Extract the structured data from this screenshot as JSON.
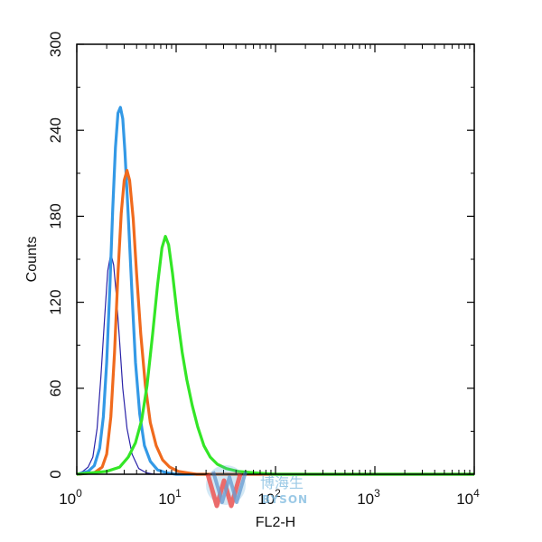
{
  "chart_data": {
    "type": "line",
    "title": "",
    "xlabel": "FL2-H",
    "ylabel": "Counts",
    "xscale": "log",
    "xlim": [
      1,
      10000
    ],
    "ylim": [
      0,
      300
    ],
    "grid": false,
    "legend": "none",
    "x_ticks": [
      {
        "value": 1,
        "base": "10",
        "exp": "0"
      },
      {
        "value": 10,
        "base": "10",
        "exp": "1"
      },
      {
        "value": 100,
        "base": "10",
        "exp": "2"
      },
      {
        "value": 1000,
        "base": "10",
        "exp": "3"
      },
      {
        "value": 10000,
        "base": "10",
        "exp": "4"
      }
    ],
    "y_ticks": [
      {
        "value": 0,
        "label": "0"
      },
      {
        "value": 60,
        "label": "60"
      },
      {
        "value": 120,
        "label": "120"
      },
      {
        "value": 180,
        "label": "180"
      },
      {
        "value": 240,
        "label": "240"
      },
      {
        "value": 300,
        "label": "300"
      }
    ],
    "series": [
      {
        "color": "#2a23a8",
        "width": 1.2,
        "points": [
          [
            1.0,
            0
          ],
          [
            1.15,
            2
          ],
          [
            1.3,
            5
          ],
          [
            1.45,
            12
          ],
          [
            1.6,
            32
          ],
          [
            1.75,
            68
          ],
          [
            1.9,
            108
          ],
          [
            2.05,
            142
          ],
          [
            2.2,
            154
          ],
          [
            2.35,
            146
          ],
          [
            2.5,
            125
          ],
          [
            2.7,
            92
          ],
          [
            2.9,
            60
          ],
          [
            3.2,
            32
          ],
          [
            3.6,
            14
          ],
          [
            4.2,
            4
          ],
          [
            5.0,
            1
          ],
          [
            6.0,
            0
          ],
          [
            8.0,
            0
          ],
          [
            10000,
            0
          ]
        ]
      },
      {
        "color": "#3399e6",
        "width": 3.2,
        "points": [
          [
            1.0,
            0
          ],
          [
            1.3,
            2
          ],
          [
            1.5,
            6
          ],
          [
            1.7,
            18
          ],
          [
            1.85,
            40
          ],
          [
            2.0,
            78
          ],
          [
            2.15,
            130
          ],
          [
            2.3,
            185
          ],
          [
            2.45,
            228
          ],
          [
            2.6,
            252
          ],
          [
            2.75,
            256
          ],
          [
            2.9,
            248
          ],
          [
            3.05,
            225
          ],
          [
            3.3,
            180
          ],
          [
            3.6,
            125
          ],
          [
            3.9,
            78
          ],
          [
            4.3,
            42
          ],
          [
            4.8,
            20
          ],
          [
            5.5,
            9
          ],
          [
            6.5,
            3
          ],
          [
            8.0,
            1
          ],
          [
            10.0,
            0
          ],
          [
            10000,
            0
          ]
        ]
      },
      {
        "color": "#f06a1d",
        "width": 3.2,
        "points": [
          [
            1.0,
            0
          ],
          [
            1.5,
            1
          ],
          [
            1.8,
            5
          ],
          [
            2.0,
            14
          ],
          [
            2.2,
            40
          ],
          [
            2.4,
            85
          ],
          [
            2.6,
            140
          ],
          [
            2.8,
            182
          ],
          [
            3.0,
            205
          ],
          [
            3.2,
            212
          ],
          [
            3.4,
            205
          ],
          [
            3.7,
            178
          ],
          [
            4.0,
            140
          ],
          [
            4.4,
            98
          ],
          [
            4.9,
            62
          ],
          [
            5.5,
            36
          ],
          [
            6.3,
            20
          ],
          [
            7.3,
            10
          ],
          [
            8.6,
            5
          ],
          [
            10.5,
            2
          ],
          [
            13,
            1
          ],
          [
            16,
            0
          ],
          [
            10000,
            0
          ]
        ]
      },
      {
        "color": "#33e626",
        "width": 3.2,
        "points": [
          [
            1.0,
            0
          ],
          [
            2.0,
            2
          ],
          [
            2.7,
            5
          ],
          [
            3.3,
            12
          ],
          [
            3.9,
            22
          ],
          [
            4.5,
            38
          ],
          [
            5.1,
            62
          ],
          [
            5.8,
            98
          ],
          [
            6.5,
            132
          ],
          [
            7.2,
            158
          ],
          [
            7.8,
            166
          ],
          [
            8.4,
            160
          ],
          [
            9.2,
            140
          ],
          [
            10.3,
            110
          ],
          [
            11.5,
            85
          ],
          [
            12.8,
            66
          ],
          [
            14.5,
            48
          ],
          [
            16.5,
            33
          ],
          [
            19,
            20
          ],
          [
            22,
            12
          ],
          [
            26,
            7
          ],
          [
            32,
            4
          ],
          [
            42,
            2
          ],
          [
            60,
            1
          ],
          [
            100,
            0
          ],
          [
            10000,
            0
          ]
        ]
      }
    ]
  },
  "watermark": {
    "cn_text": "博海生",
    "en_text": "BYSON"
  }
}
